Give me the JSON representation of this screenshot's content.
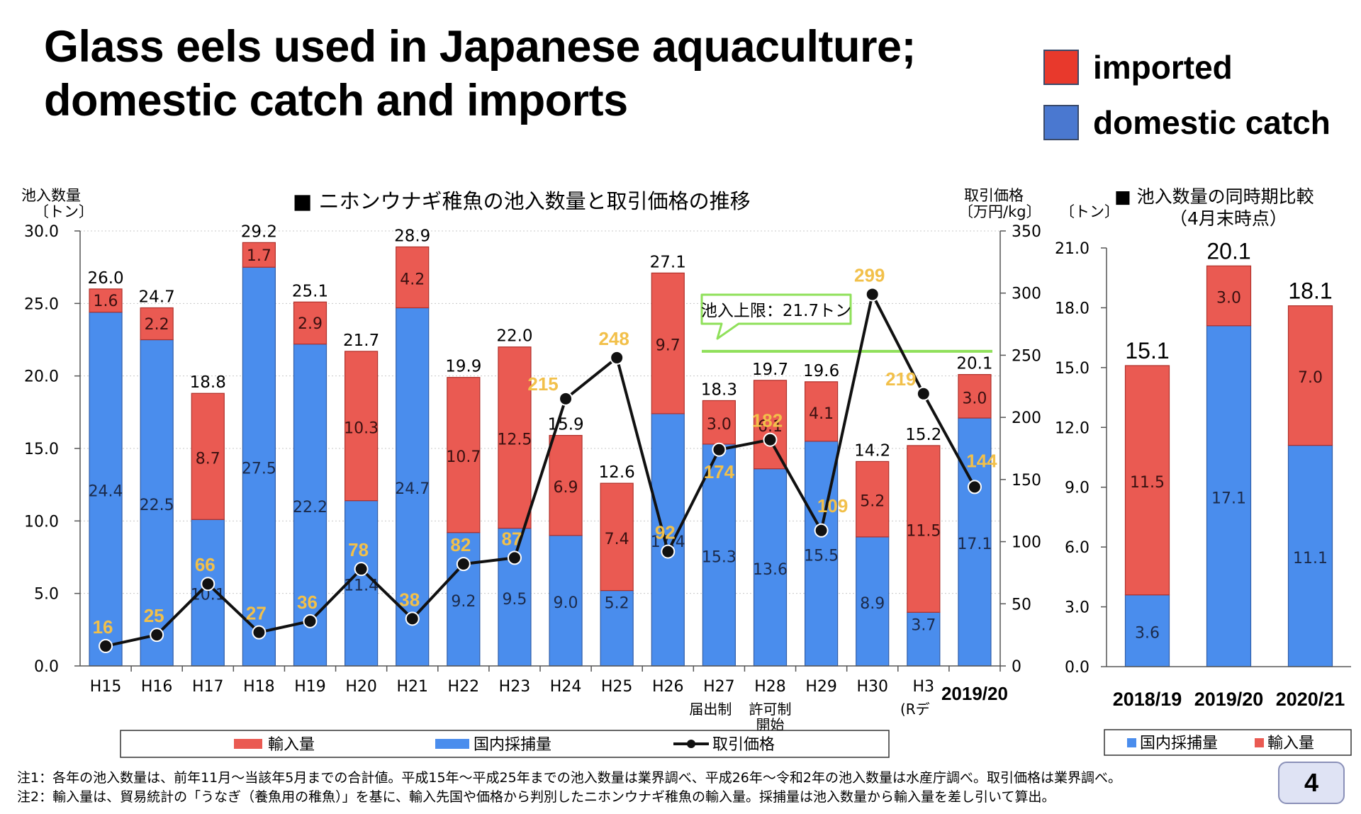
{
  "title": {
    "line1": "Glass eels used in Japanese aquaculture;",
    "line2": "domestic catch and imports"
  },
  "legend_top": [
    {
      "label": "imported",
      "color": "#e8392c"
    },
    {
      "label": "domestic catch",
      "color": "#4a78d0"
    }
  ],
  "colors": {
    "imported": "#ea5a52",
    "domestic": "#4a8ded",
    "price_label": "#f2c04a",
    "cap_line": "#8fe05a"
  },
  "chart_data": [
    {
      "type": "bar",
      "title": "■ ニホンウナギ稚魚の池入数量と取引価格の推移",
      "ylabel_left": [
        "池入数量",
        "〔トン〕"
      ],
      "ylabel_right": [
        "取引価格",
        "〔万円/kg〕"
      ],
      "ylim_left": [
        0,
        30
      ],
      "ylim_right": [
        0,
        350
      ],
      "left_ticks": [
        "0.0",
        "5.0",
        "10.0",
        "15.0",
        "20.0",
        "25.0",
        "30.0"
      ],
      "right_ticks": [
        "0",
        "50",
        "100",
        "150",
        "200",
        "250",
        "300",
        "350"
      ],
      "categories": [
        "H15",
        "H16",
        "H17",
        "H18",
        "H19",
        "H20",
        "H21",
        "H22",
        "H23",
        "H24",
        "H25",
        "H26",
        "H27",
        "H28",
        "H29",
        "H30",
        "H3",
        "2019/20"
      ],
      "category_sublabels": [
        "",
        "",
        "",
        "",
        "",
        "",
        "",
        "",
        "",
        "",
        "",
        "",
        "届出制",
        "許可制\n開始",
        "",
        "",
        "(Rデ",
        ""
      ],
      "series": [
        {
          "name": "国内採捕量",
          "values": [
            24.4,
            22.5,
            10.1,
            27.5,
            22.2,
            11.4,
            24.7,
            9.2,
            9.5,
            9.0,
            5.2,
            17.4,
            15.3,
            13.6,
            15.5,
            8.9,
            3.7,
            17.1
          ]
        },
        {
          "name": "輸入量",
          "values": [
            1.6,
            2.2,
            8.7,
            1.7,
            2.9,
            10.3,
            4.2,
            10.7,
            12.5,
            6.9,
            7.4,
            9.7,
            3.0,
            6.1,
            4.1,
            5.2,
            11.5,
            3.0
          ]
        }
      ],
      "totals": [
        "26.0",
        "24.7",
        "18.8",
        "29.2",
        "25.1",
        "21.7",
        "28.9",
        "19.9",
        "22.0",
        "15.9",
        "12.6",
        "27.1",
        "18.3",
        "19.7",
        "19.6",
        "14.2",
        "15.2",
        "20.1"
      ],
      "price": {
        "name": "取引価格",
        "values": [
          16,
          25,
          66,
          27,
          36,
          78,
          38,
          82,
          87,
          215,
          248,
          92,
          174,
          182,
          109,
          299,
          219,
          144
        ]
      },
      "cap_annotation": {
        "text": "池入上限：21.7トン",
        "value": 21.7
      },
      "legend": [
        "輸入量",
        "国内採捕量",
        "取引価格"
      ]
    },
    {
      "type": "bar",
      "title": "■ 池入数量の同時期比較",
      "subtitle": "（4月末時点）",
      "ylabel": "〔トン〕",
      "ylim": [
        0,
        21
      ],
      "ticks": [
        "0.0",
        "3.0",
        "6.0",
        "9.0",
        "12.0",
        "15.0",
        "18.0",
        "21.0"
      ],
      "categories": [
        "2018/19",
        "2019/20",
        "2020/21"
      ],
      "series": [
        {
          "name": "国内採捕量",
          "values": [
            3.6,
            17.1,
            11.1
          ]
        },
        {
          "name": "輸入量",
          "values": [
            11.5,
            3.0,
            7.0
          ]
        }
      ],
      "totals": [
        "15.1",
        "20.1",
        "18.1"
      ],
      "legend": [
        "国内採捕量",
        "輸入量"
      ]
    }
  ],
  "notes": [
    "注1：各年の池入数量は、前年11月～当該年5月までの合計値。平成15年～平成25年までの池入数量は業界調べ、平成26年～令和2年の池入数量は水産庁調べ。取引価格は業界調べ。",
    "注2：輸入量は、貿易統計の「うなぎ（養魚用の稚魚）」を基に、輸入先国や価格から判別したニホンウナギ稚魚の輸入量。採捕量は池入数量から輸入量を差し引いて算出。"
  ],
  "page_number": "4"
}
